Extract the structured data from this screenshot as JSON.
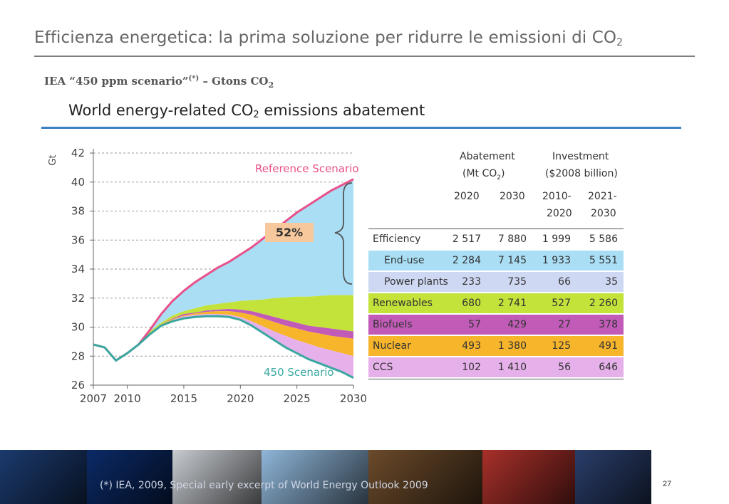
{
  "slide": {
    "title": "Efficienza energetica: la prima soluzione per ridurre le emissioni di CO",
    "title_sub": "2",
    "subtitle": "IEA “450 ppm scenario”",
    "subtitle_sup": "(*)",
    "subtitle_tail": " – Gtons CO",
    "subtitle_sub": "2",
    "figure_title": "World energy-related CO",
    "figure_title_sub": "2",
    "figure_title_tail": " emissions abatement",
    "badge": "52%",
    "footnote": "(*) IEA, 2009, Special early excerpt of World Energy Outlook 2009",
    "page_number": "27"
  },
  "chart_data": {
    "type": "area",
    "title": "World energy-related CO2 emissions abatement",
    "ylabel": "Gt",
    "xlabel": "",
    "xlim": [
      2007,
      2030
    ],
    "ylim": [
      26,
      42
    ],
    "x_ticks": [
      2007,
      2010,
      2015,
      2020,
      2025,
      2030
    ],
    "y_ticks": [
      26,
      28,
      30,
      32,
      34,
      36,
      38,
      40,
      42
    ],
    "grid": "horizontal dashed",
    "annotations": [
      "Reference Scenario",
      "450 Scenario"
    ],
    "colors": {
      "reference": "#e8508a",
      "scenario450": "#3aa8a0",
      "efficiency": "#a9def5",
      "renewables": "#c3e23a",
      "biofuels": "#c25bb8",
      "nuclear": "#f7b52b",
      "ccs": "#e6b0ea"
    },
    "x": [
      2007,
      2008,
      2009,
      2010,
      2011,
      2012,
      2013,
      2014,
      2015,
      2016,
      2017,
      2018,
      2019,
      2020,
      2021,
      2022,
      2023,
      2024,
      2025,
      2026,
      2027,
      2028,
      2029,
      2030
    ],
    "series": [
      {
        "name": "Reference Scenario",
        "values": [
          28.8,
          28.6,
          27.7,
          28.2,
          28.8,
          29.8,
          30.9,
          31.8,
          32.5,
          33.1,
          33.6,
          34.1,
          34.5,
          35.0,
          35.5,
          36.1,
          36.7,
          37.3,
          37.9,
          38.4,
          38.9,
          39.4,
          39.8,
          40.2
        ]
      },
      {
        "name": "Renewables top",
        "values": [
          28.8,
          28.6,
          27.7,
          28.2,
          28.8,
          29.7,
          30.3,
          30.8,
          31.1,
          31.3,
          31.5,
          31.6,
          31.7,
          31.8,
          31.85,
          31.9,
          32.0,
          32.05,
          32.1,
          32.1,
          32.15,
          32.2,
          32.2,
          32.2
        ]
      },
      {
        "name": "Biofuels top",
        "values": [
          28.8,
          28.6,
          27.7,
          28.2,
          28.8,
          29.6,
          30.2,
          30.6,
          30.9,
          31.0,
          31.15,
          31.2,
          31.25,
          31.2,
          31.1,
          30.9,
          30.7,
          30.5,
          30.3,
          30.1,
          30.0,
          29.9,
          29.8,
          29.7
        ]
      },
      {
        "name": "Nuclear top",
        "values": [
          28.8,
          28.6,
          27.7,
          28.2,
          28.8,
          29.6,
          30.2,
          30.55,
          30.8,
          30.95,
          31.05,
          31.1,
          31.1,
          31.0,
          30.85,
          30.6,
          30.35,
          30.1,
          29.9,
          29.7,
          29.55,
          29.4,
          29.3,
          29.2
        ]
      },
      {
        "name": "CCS top",
        "values": [
          28.8,
          28.6,
          27.7,
          28.2,
          28.8,
          29.5,
          30.1,
          30.5,
          30.75,
          30.85,
          30.9,
          30.9,
          30.85,
          30.7,
          30.4,
          30.05,
          29.7,
          29.4,
          29.1,
          28.85,
          28.6,
          28.4,
          28.2,
          28.0
        ]
      },
      {
        "name": "450 Scenario",
        "values": [
          28.8,
          28.6,
          27.7,
          28.2,
          28.8,
          29.5,
          30.1,
          30.4,
          30.6,
          30.7,
          30.75,
          30.75,
          30.7,
          30.5,
          30.1,
          29.6,
          29.1,
          28.6,
          28.2,
          27.8,
          27.5,
          27.2,
          26.9,
          26.5
        ]
      }
    ],
    "table": {
      "headers": {
        "abatement": "Abatement",
        "abatement_unit": "(Mt CO",
        "abatement_unit_sub": "2",
        "abatement_unit_close": ")",
        "investment": "Investment",
        "investment_unit": "($2008 billion)",
        "col1": "2020",
        "col2": "2030",
        "col3a": "2010-",
        "col3b": "2020",
        "col4a": "2021-",
        "col4b": "2030"
      },
      "rows": [
        {
          "label": "Efficiency",
          "v1": "2 517",
          "v2": "7 880",
          "v3": "1 999",
          "v4": "5 586",
          "color": "#ffffff",
          "indent": false
        },
        {
          "label": "End-use",
          "v1": "2 284",
          "v2": "7 145",
          "v3": "1 933",
          "v4": "5 551",
          "color": "#a9def5",
          "indent": true
        },
        {
          "label": "Power plants",
          "v1": "233",
          "v2": "735",
          "v3": "66",
          "v4": "35",
          "color": "#cfd8f3",
          "indent": true
        },
        {
          "label": "Renewables",
          "v1": "680",
          "v2": "2 741",
          "v3": "527",
          "v4": "2 260",
          "color": "#c3e23a",
          "indent": false
        },
        {
          "label": "Biofuels",
          "v1": "57",
          "v2": "429",
          "v3": "27",
          "v4": "378",
          "color": "#c25bb8",
          "indent": false
        },
        {
          "label": "Nuclear",
          "v1": "493",
          "v2": "1 380",
          "v3": "125",
          "v4": "491",
          "color": "#f7b52b",
          "indent": false
        },
        {
          "label": "CCS",
          "v1": "102",
          "v2": "1 410",
          "v3": "56",
          "v4": "646",
          "color": "#e6b0ea",
          "indent": false
        }
      ]
    }
  },
  "photo_strip": {
    "colors": [
      "#1b3a6e",
      "#0b2a66",
      "#c8ccd1",
      "#8fb6d9",
      "#6b4a2a",
      "#a8302a",
      "#2a3e6a"
    ]
  }
}
